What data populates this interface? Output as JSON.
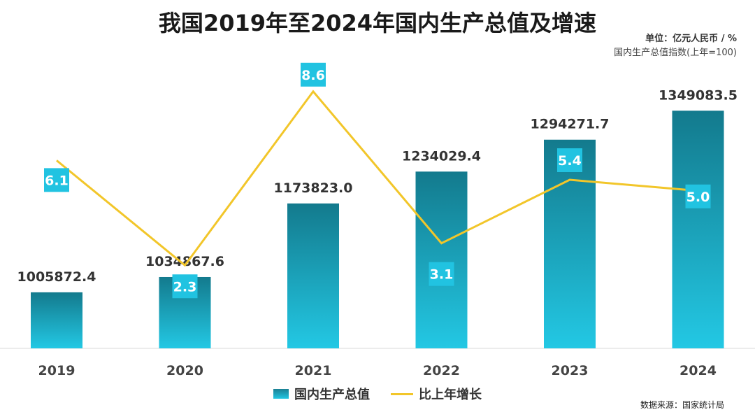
{
  "title": "我国2019年至2024年国内生产总值及增速",
  "unit_label": "单位：亿元人民币 / %",
  "index_note": "国内生产总值指数(上年=100)",
  "source": "数据来源：国家统计局",
  "colors": {
    "bar_top": "#137a8d",
    "bar_bottom": "#23c8e4",
    "line": "#f2c62a",
    "marker_box": "#21c3e1",
    "marker_text": "#ffffff"
  },
  "chart_data": {
    "type": "bar",
    "categories": [
      "2019",
      "2020",
      "2021",
      "2022",
      "2023",
      "2024"
    ],
    "series": [
      {
        "name": "国内生产总值",
        "type": "bar",
        "values": [
          1005872.4,
          1034867.6,
          1173823.0,
          1234029.4,
          1294271.7,
          1349083.5
        ],
        "labels": [
          "1005872.4",
          "1034867.6",
          "1173823.0",
          "1234029.4",
          "1294271.7",
          "1349083.5"
        ]
      },
      {
        "name": "比上年增长",
        "type": "line",
        "values": [
          6.1,
          2.3,
          8.6,
          3.1,
          5.4,
          5.0
        ],
        "labels": [
          "6.1",
          "2.3",
          "8.6",
          "3.1",
          "5.4",
          "5.0"
        ]
      }
    ],
    "legend": [
      "国内生产总值",
      "比上年增长"
    ],
    "legend_position": "bottom-center",
    "grid": false
  }
}
